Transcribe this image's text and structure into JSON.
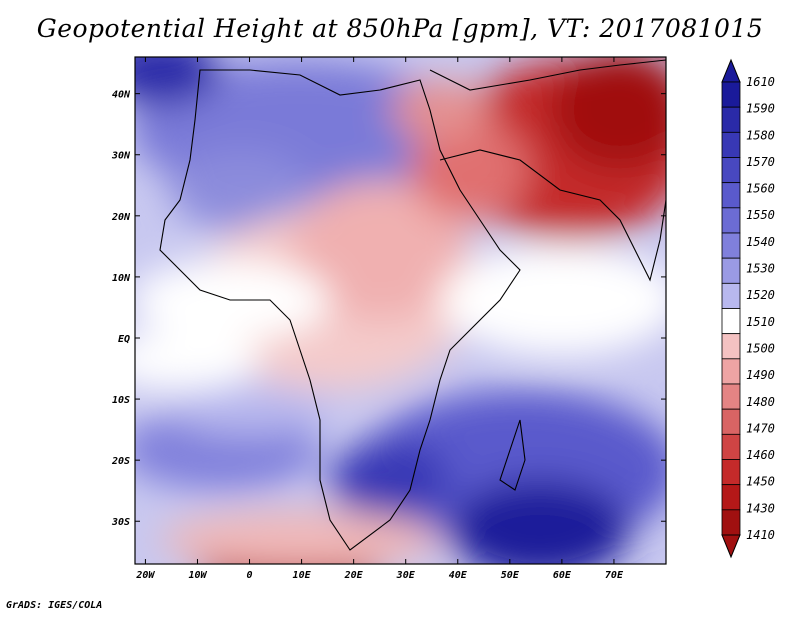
{
  "title": "Geopotential Height at 850hPa [gpm], VT: 2017081015",
  "credit": "GrADS: IGES/COLA",
  "map": {
    "lon_range": [
      -22,
      80
    ],
    "lat_range": [
      -37,
      46
    ],
    "lat_ticks": [
      "40N",
      "30N",
      "20N",
      "10N",
      "EQ",
      "10S",
      "20S",
      "30S"
    ],
    "lon_ticks": [
      "20W",
      "10W",
      "0",
      "10E",
      "20E",
      "30E",
      "40E",
      "50E",
      "60E",
      "70E"
    ]
  },
  "colorbar": {
    "levels": [
      "1610",
      "1590",
      "1580",
      "1570",
      "1560",
      "1550",
      "1540",
      "1530",
      "1520",
      "1510",
      "1500",
      "1490",
      "1480",
      "1470",
      "1460",
      "1450",
      "1430",
      "1410"
    ],
    "colors": [
      "#1a1a9a",
      "#2a2aa8",
      "#3838b5",
      "#4848c0",
      "#5a5acc",
      "#6c6cd4",
      "#8080dc",
      "#9a9ae4",
      "#b8b8ee",
      "#ffffff",
      "#f4c2c2",
      "#eea4a4",
      "#e48484",
      "#d96464",
      "#cf4444",
      "#c42a2a",
      "#b41818",
      "#a01010"
    ]
  }
}
